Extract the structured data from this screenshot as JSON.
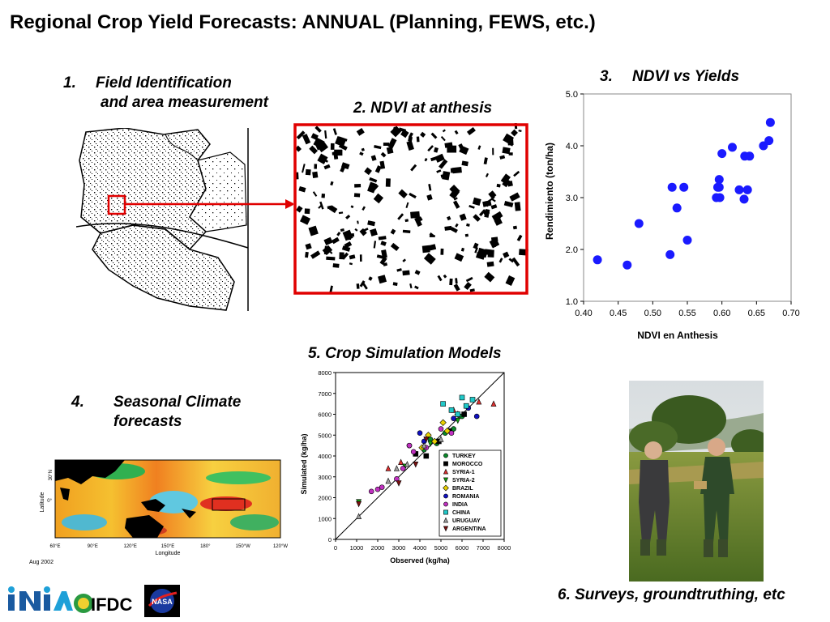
{
  "slide": {
    "title": "Regional Crop Yield Forecasts:  ANNUAL  (Planning, FEWS, etc.)",
    "panel1": {
      "num": "1.",
      "line1": "Field Identification",
      "line2": "and area measurement"
    },
    "panel2": {
      "caption": "2. NDVI at anthesis"
    },
    "panel3": {
      "num": "3.",
      "caption": "NDVI vs Yields"
    },
    "panel4": {
      "num": "4.",
      "line1": "Seasonal Climate",
      "line2": "forecasts",
      "date_note": "Aug 2002",
      "lat_label": "Latitude",
      "lon_label": "Longitude",
      "lat_ticks": [
        "30°N",
        "0°"
      ],
      "lon_ticks": [
        "60°E",
        "90°E",
        "120°E",
        "150°E",
        "180°",
        "150°W",
        "120°W"
      ]
    },
    "panel5": {
      "caption": "5.  Crop Simulation Models"
    },
    "panel6": {
      "caption": "6.  Surveys, groundtruthing, etc"
    },
    "logos": {
      "inia": "INIA",
      "ifdc": "IFDC",
      "nasa": "NASA"
    }
  },
  "chart_data": [
    {
      "type": "scatter",
      "title": "",
      "xlabel": "NDVI en Anthesis",
      "ylabel": "Rendimiento (ton/ha)",
      "xlim": [
        0.4,
        0.7
      ],
      "ylim": [
        1.0,
        5.0
      ],
      "xticks": [
        "0.40",
        "0.45",
        "0.50",
        "0.55",
        "0.60",
        "0.65",
        "0.70"
      ],
      "yticks": [
        "1.0",
        "2.0",
        "3.0",
        "4.0",
        "5.0"
      ],
      "grid": false,
      "color": "#1a1aff",
      "points": [
        [
          0.42,
          1.8
        ],
        [
          0.463,
          1.7
        ],
        [
          0.48,
          2.5
        ],
        [
          0.525,
          1.9
        ],
        [
          0.528,
          3.2
        ],
        [
          0.535,
          2.8
        ],
        [
          0.545,
          3.2
        ],
        [
          0.55,
          2.18
        ],
        [
          0.592,
          3.0
        ],
        [
          0.594,
          3.2
        ],
        [
          0.596,
          3.35
        ],
        [
          0.596,
          3.2
        ],
        [
          0.597,
          3.0
        ],
        [
          0.6,
          3.85
        ],
        [
          0.615,
          3.97
        ],
        [
          0.625,
          3.15
        ],
        [
          0.632,
          2.97
        ],
        [
          0.633,
          3.8
        ],
        [
          0.637,
          3.15
        ],
        [
          0.64,
          3.8
        ],
        [
          0.66,
          4.0
        ],
        [
          0.668,
          4.1
        ],
        [
          0.67,
          4.45
        ]
      ]
    },
    {
      "type": "scatter",
      "title": "",
      "xlabel": "Observed (kg/ha)",
      "ylabel": "Simulated (kg/ha)",
      "xlim": [
        0,
        8000
      ],
      "ylim": [
        0,
        8000
      ],
      "xticks": [
        "0",
        "1000",
        "2000",
        "3000",
        "4000",
        "5000",
        "6000",
        "7000",
        "8000"
      ],
      "yticks": [
        "0",
        "1000",
        "2000",
        "3000",
        "4000",
        "5000",
        "6000",
        "7000",
        "8000"
      ],
      "reference_line": "1:1",
      "legend_position": "bottom-right",
      "series": [
        {
          "name": "TURKEY",
          "marker": "circle",
          "color": "#0a8a2a",
          "points": [
            [
              4200,
              4300
            ],
            [
              4800,
              4600
            ],
            [
              5200,
              5100
            ],
            [
              5600,
              5300
            ],
            [
              6000,
              5900
            ],
            [
              4500,
              4800
            ]
          ]
        },
        {
          "name": "MOROCCO",
          "marker": "square",
          "color": "#000000",
          "points": [
            [
              3800,
              4100
            ],
            [
              4300,
              4000
            ],
            [
              4900,
              4700
            ],
            [
              5400,
              5200
            ],
            [
              6100,
              6000
            ]
          ]
        },
        {
          "name": "SYRIA-1",
          "marker": "triangle-up",
          "color": "#e03030",
          "points": [
            [
              2500,
              3400
            ],
            [
              3100,
              3700
            ],
            [
              5600,
              6200
            ],
            [
              7500,
              6500
            ],
            [
              6800,
              6600
            ]
          ]
        },
        {
          "name": "SYRIA-2",
          "marker": "triangle-down",
          "color": "#10a010",
          "points": [
            [
              1100,
              1800
            ],
            [
              3300,
              3500
            ],
            [
              4500,
              4600
            ],
            [
              5800,
              5700
            ]
          ]
        },
        {
          "name": "BRAZIL",
          "marker": "diamond",
          "color": "#e8d000",
          "points": [
            [
              4100,
              4400
            ],
            [
              4700,
              4700
            ],
            [
              5100,
              5600
            ],
            [
              5800,
              6000
            ],
            [
              4400,
              5000
            ],
            [
              5300,
              5200
            ]
          ]
        },
        {
          "name": "ROMANIA",
          "marker": "circle",
          "color": "#1010c0",
          "points": [
            [
              3500,
              4500
            ],
            [
              4200,
              4700
            ],
            [
              5600,
              5800
            ],
            [
              6300,
              6300
            ],
            [
              6700,
              5900
            ],
            [
              4000,
              5100
            ]
          ]
        },
        {
          "name": "INDIA",
          "marker": "circle",
          "color": "#c030c0",
          "points": [
            [
              1700,
              2300
            ],
            [
              2000,
              2400
            ],
            [
              2200,
              2500
            ],
            [
              2900,
              2900
            ],
            [
              3200,
              3400
            ],
            [
              3700,
              4200
            ],
            [
              3500,
              4500
            ],
            [
              4300,
              4400
            ],
            [
              5000,
              5300
            ],
            [
              5500,
              5100
            ]
          ]
        },
        {
          "name": "CHINA",
          "marker": "square",
          "color": "#20c8c8",
          "points": [
            [
              5100,
              6500
            ],
            [
              5500,
              6200
            ],
            [
              6000,
              6800
            ],
            [
              6200,
              6400
            ],
            [
              6500,
              6700
            ],
            [
              5800,
              6000
            ]
          ]
        },
        {
          "name": "URUGUAY",
          "marker": "triangle-up",
          "color": "#a0a0a0",
          "points": [
            [
              1100,
              1100
            ],
            [
              2500,
              2800
            ],
            [
              2900,
              3400
            ],
            [
              3400,
              3600
            ],
            [
              4200,
              4500
            ],
            [
              5000,
              4800
            ]
          ]
        },
        {
          "name": "ARGENTINA",
          "marker": "triangle-down",
          "color": "#7a1010",
          "points": [
            [
              1100,
              1700
            ],
            [
              3000,
              2700
            ],
            [
              3800,
              3600
            ],
            [
              4300,
              4800
            ]
          ]
        }
      ]
    }
  ]
}
